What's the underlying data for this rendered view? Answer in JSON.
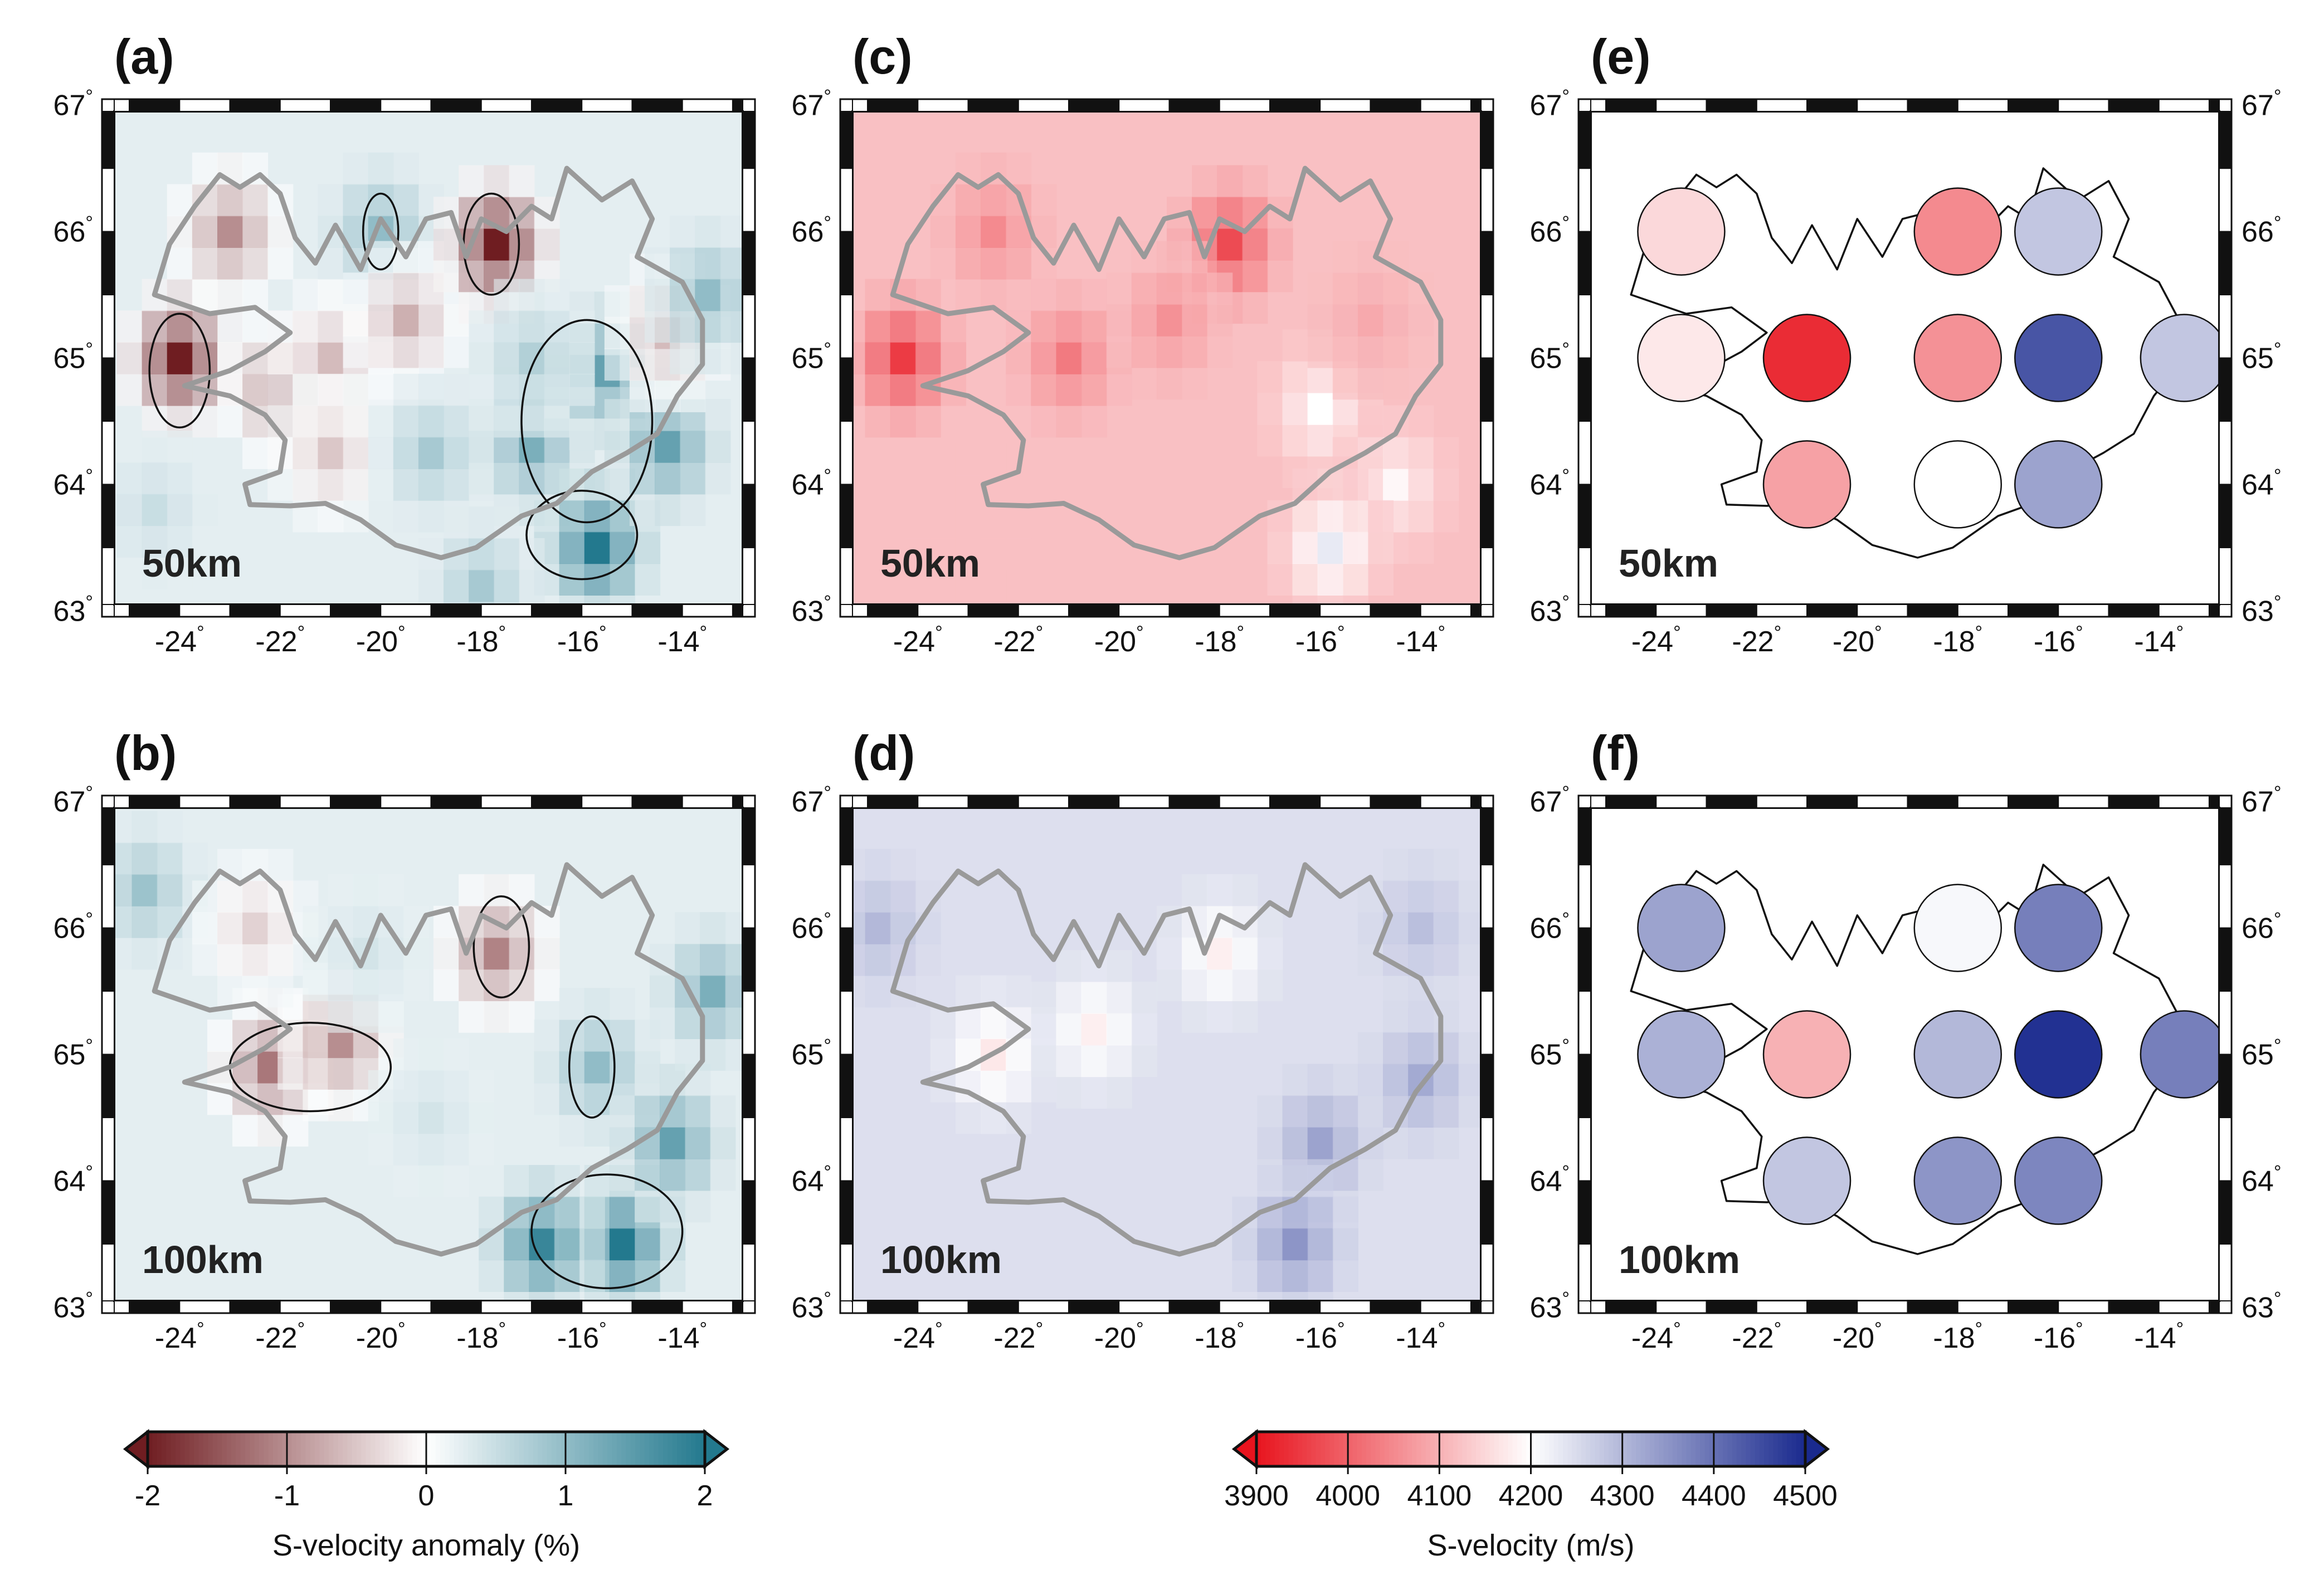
{
  "panels": [
    {
      "id": "a",
      "label": "(a)",
      "depth_label": "50km",
      "type": "anomaly",
      "cells": [
        [
          -24,
          65,
          -2
        ],
        [
          -23,
          66,
          -1
        ],
        [
          -22,
          64.75,
          -1
        ],
        [
          -21,
          65,
          -0.6
        ],
        [
          -21,
          64.25,
          -0.5
        ],
        [
          -20,
          66,
          1
        ],
        [
          -19.5,
          65.3,
          -0.7
        ],
        [
          -19,
          64.25,
          0.8
        ],
        [
          -17.7,
          65.9,
          -2
        ],
        [
          -17,
          64.3,
          1.2
        ],
        [
          -15.5,
          64.9,
          1.4
        ],
        [
          -15.7,
          63.5,
          2
        ],
        [
          -14.3,
          64.3,
          1.4
        ],
        [
          -14.3,
          65.2,
          -0.6
        ],
        [
          -13.5,
          65.5,
          1.0
        ],
        [
          -18,
          63.2,
          0.8
        ],
        [
          -24.5,
          63.8,
          0.5
        ],
        [
          -17,
          65,
          0.7
        ]
      ],
      "contours": [
        [
          -24,
          64.9,
          0.6,
          0.45
        ],
        [
          -17.8,
          65.9,
          0.55,
          0.4
        ],
        [
          -16,
          63.6,
          1.1,
          0.35
        ],
        [
          -20,
          66,
          0.35,
          0.3
        ],
        [
          -15.9,
          64.5,
          1.3,
          0.8
        ]
      ],
      "symbols": []
    },
    {
      "id": "b",
      "label": "(b)",
      "depth_label": "100km",
      "type": "anomaly",
      "cells": [
        [
          -22.2,
          64.9,
          -1.2
        ],
        [
          -20.8,
          65.1,
          -1.0
        ],
        [
          -17.7,
          65.8,
          -1.1
        ],
        [
          -15.2,
          63.5,
          2
        ],
        [
          -16.8,
          63.5,
          1.8
        ],
        [
          -15.7,
          64.9,
          1.0
        ],
        [
          -14.2,
          64.3,
          1.4
        ],
        [
          -24.7,
          66.3,
          0.9
        ],
        [
          -13.4,
          65.5,
          1.2
        ],
        [
          -19,
          64.5,
          0.4
        ],
        [
          -22.5,
          66,
          -0.4
        ],
        [
          -20.3,
          65.8,
          0.4
        ]
      ],
      "contours": [
        [
          -21.4,
          64.9,
          1.6,
          0.35
        ],
        [
          -17.6,
          65.85,
          0.55,
          0.4
        ],
        [
          -15.5,
          63.6,
          1.5,
          0.45
        ],
        [
          -15.8,
          64.9,
          0.45,
          0.4
        ]
      ],
      "symbols": []
    },
    {
      "id": "c",
      "label": "(c)",
      "depth_label": "50km",
      "type": "velocity",
      "base": 4120,
      "cells": [
        [
          -24.3,
          65,
          3950
        ],
        [
          -22.5,
          66,
          4050
        ],
        [
          -21,
          65,
          4030
        ],
        [
          -17.8,
          65.9,
          3970
        ],
        [
          -19,
          65.3,
          4060
        ],
        [
          -16,
          64.6,
          4200
        ],
        [
          -14.5,
          64,
          4190
        ],
        [
          -15.8,
          63.5,
          4230
        ],
        [
          -15,
          65.3,
          4090
        ],
        [
          -23,
          63.7,
          4120
        ]
      ],
      "contours": [],
      "symbols": []
    },
    {
      "id": "d",
      "label": "(d)",
      "depth_label": "100km",
      "type": "velocity",
      "base": 4245,
      "cells": [
        [
          -16,
          64.3,
          4330
        ],
        [
          -16.5,
          63.5,
          4350
        ],
        [
          -14,
          64.8,
          4320
        ],
        [
          -22.5,
          65,
          4170
        ],
        [
          -20.5,
          65.2,
          4180
        ],
        [
          -18,
          65.8,
          4180
        ],
        [
          -24.8,
          66,
          4300
        ],
        [
          -14,
          66,
          4290
        ]
      ],
      "contours": [],
      "symbols": []
    },
    {
      "id": "e",
      "label": "(e)",
      "depth_label": "50km",
      "type": "symbols",
      "cells": [],
      "contours": [],
      "symbols": [
        [
          -23.5,
          66,
          4150
        ],
        [
          -18,
          66,
          4050
        ],
        [
          -16,
          66,
          4280
        ],
        [
          -23.5,
          65,
          4170
        ],
        [
          -21,
          65,
          3930
        ],
        [
          -18,
          65,
          4060
        ],
        [
          -16,
          65,
          4440
        ],
        [
          -13.5,
          65,
          4280
        ],
        [
          -21,
          64,
          4080
        ],
        [
          -18,
          64,
          4200
        ],
        [
          -16,
          64,
          4330
        ]
      ]
    },
    {
      "id": "f",
      "label": "(f)",
      "depth_label": "100km",
      "type": "symbols",
      "cells": [],
      "contours": [],
      "symbols": [
        [
          -23.5,
          66,
          4330
        ],
        [
          -18,
          66,
          4210
        ],
        [
          -16,
          66,
          4380
        ],
        [
          -23.5,
          65,
          4310
        ],
        [
          -21,
          65,
          4100
        ],
        [
          -18,
          65,
          4300
        ],
        [
          -16,
          65,
          4490
        ],
        [
          -13.5,
          65,
          4380
        ],
        [
          -21,
          64,
          4280
        ],
        [
          -18,
          64,
          4350
        ],
        [
          -16,
          64,
          4370
        ]
      ]
    }
  ],
  "x_ticks": [
    "-24",
    "-22",
    "-20",
    "-18",
    "-16",
    "-14"
  ],
  "x_tick_values": [
    -24,
    -22,
    -20,
    -18,
    -16,
    -14
  ],
  "y_ticks": [
    "67",
    "66",
    "65",
    "64",
    "63"
  ],
  "y_tick_values": [
    67,
    66,
    65,
    64,
    63
  ],
  "degree_symbol": "°",
  "colorbar_anomaly": {
    "title": "S-velocity anomaly (%)",
    "ticks": [
      "-2",
      "-1",
      "0",
      "1",
      "2"
    ],
    "tick_values": [
      -2,
      -1,
      0,
      1,
      2
    ]
  },
  "colorbar_velocity": {
    "title": "S-velocity (m/s)",
    "ticks": [
      "3900",
      "4000",
      "4100",
      "4200",
      "4300",
      "4400",
      "4500"
    ],
    "tick_values": [
      3900,
      4000,
      4100,
      4200,
      4300,
      4400,
      4500
    ]
  },
  "colors": {
    "anomaly_neg": "#6f1d21",
    "anomaly_mid": "#ffffff",
    "anomaly_pos": "#23798e",
    "velocity_low": "#e8141e",
    "velocity_mid": "#ffffff",
    "velocity_high": "#1a2a8e",
    "coast_gray": "#9a9a9a"
  }
}
